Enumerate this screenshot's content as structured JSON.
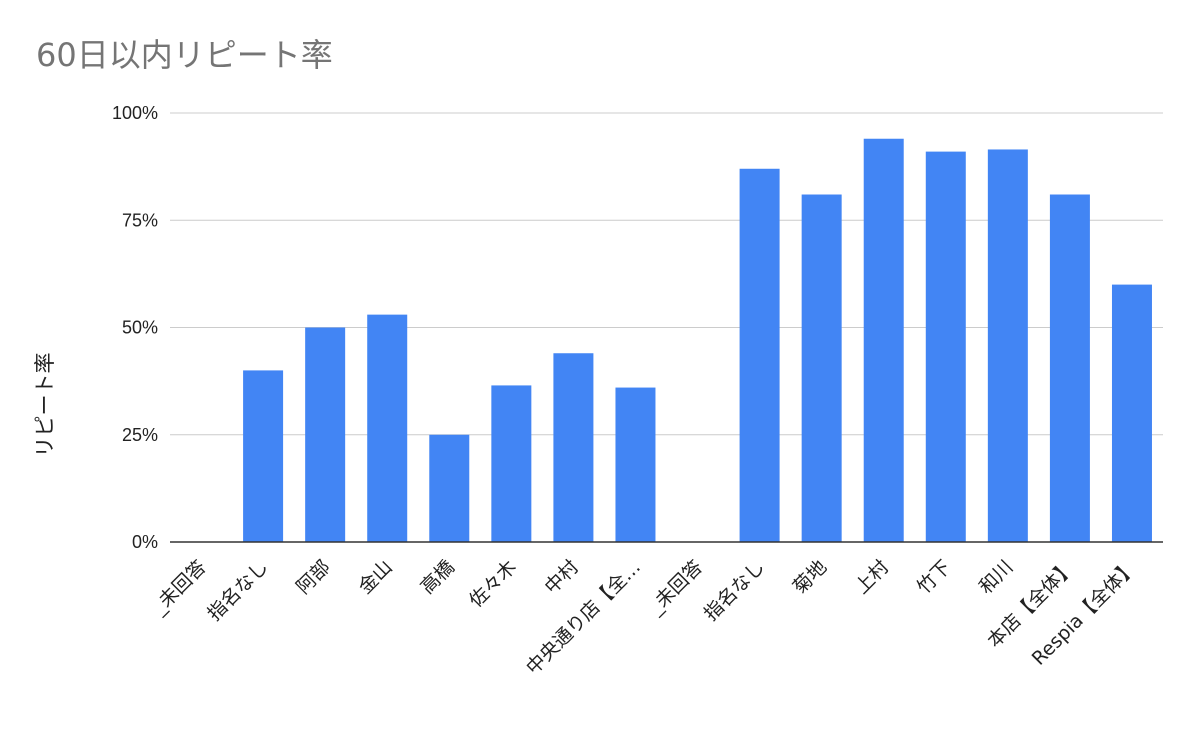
{
  "chart_data": {
    "type": "bar",
    "title": "60日以内リピート率",
    "ylabel": "リピート率",
    "xlabel": "",
    "ylim": [
      0,
      100
    ],
    "yticks": [
      "0%",
      "25%",
      "50%",
      "75%",
      "100%"
    ],
    "ytick_values": [
      0,
      25,
      50,
      75,
      100
    ],
    "categories": [
      "_未回答",
      "指名なし",
      "阿部",
      "金山",
      "高橋",
      "佐々木",
      "中村",
      "中央通り店【全…",
      "_未回答",
      "指名なし",
      "菊地",
      "上村",
      "竹下",
      "和川",
      "本店【全体】",
      "Respia【全体】"
    ],
    "values": [
      0,
      40,
      50,
      53,
      25,
      36.5,
      44,
      36,
      0,
      87,
      81,
      94,
      91,
      91.5,
      81,
      60
    ],
    "grid": true,
    "legend": "none",
    "bar_color": "#4285f4",
    "grid_color": "#cccccc",
    "axis_color": "#333333"
  }
}
